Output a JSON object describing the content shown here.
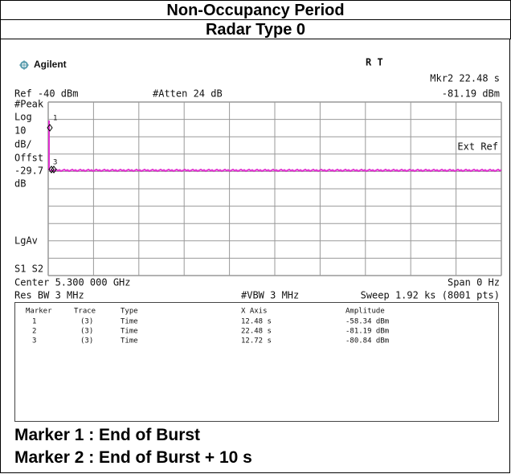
{
  "header": {
    "title": "Non-Occupancy Period",
    "subtitle": "Radar Type 0"
  },
  "screen": {
    "brand": "Agilent",
    "status": "R   T",
    "marker_readout_x": "Mkr2  22.48 s",
    "ref_level": "Ref -40 dBm",
    "attenuation": "#Atten 24 dB",
    "marker_readout_y": "-81.19 dBm",
    "left_labels": [
      "#Peak",
      "Log",
      "10",
      "dB/",
      "Offst",
      "-29.7",
      "dB",
      "LgAv",
      "S1  S2"
    ],
    "ext_ref": "Ext Ref",
    "trace_markers": [
      "1",
      "3"
    ],
    "center": "Center 5.300 000 GHz",
    "span": "Span 0 Hz",
    "rbw": "Res BW 3 MHz",
    "vbw": "#VBW 3 MHz",
    "sweep": "Sweep 1.92 ks (8001 pts)",
    "marker_table": {
      "columns": [
        "Marker",
        "Trace",
        "Type",
        "X Axis",
        "Amplitude"
      ],
      "rows": [
        [
          "1",
          "(3)",
          "Time",
          "12.48 s",
          "-58.34 dBm"
        ],
        [
          "2",
          "(3)",
          "Time",
          "22.48 s",
          "-81.19 dBm"
        ],
        [
          "3",
          "(3)",
          "Time",
          "12.72 s",
          "-80.84 dBm"
        ]
      ]
    }
  },
  "notes": [
    "Marker 1 : End of Burst",
    "Marker 2 : End of Burst + 10 s"
  ]
}
